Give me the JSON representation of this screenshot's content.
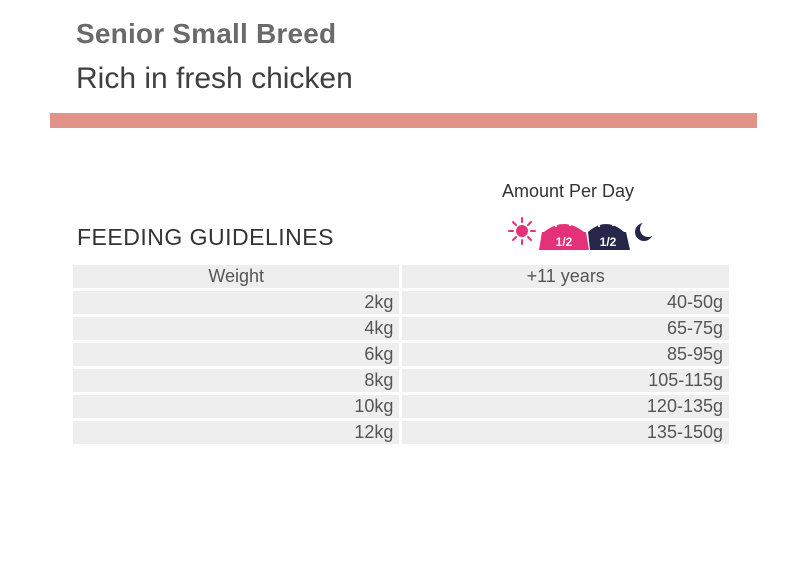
{
  "product": {
    "title": "Senior Small Breed",
    "subtitle": "Rich in fresh chicken"
  },
  "feeding": {
    "amount_label": "Amount Per Day",
    "heading": "FEEDING GUIDELINES",
    "icons": {
      "morning_icon": "sun-icon",
      "evening_icon": "moon-icon",
      "morning_portion": "1/2",
      "evening_portion": "1/2",
      "morning_color": "#e5307a",
      "evening_color": "#26264a"
    },
    "table": {
      "headers": [
        "Weight",
        "+11 years"
      ],
      "rows": [
        {
          "weight": "2kg",
          "amount": "40-50g"
        },
        {
          "weight": "4kg",
          "amount": "65-75g"
        },
        {
          "weight": "6kg",
          "amount": "85-95g"
        },
        {
          "weight": "8kg",
          "amount": "105-115g"
        },
        {
          "weight": "10kg",
          "amount": "120-135g"
        },
        {
          "weight": "12kg",
          "amount": "135-150g"
        }
      ]
    }
  },
  "colors": {
    "accent_bar": "#df9389",
    "cell_background": "#eeeeee",
    "title_gray": "#6a6a6a"
  }
}
